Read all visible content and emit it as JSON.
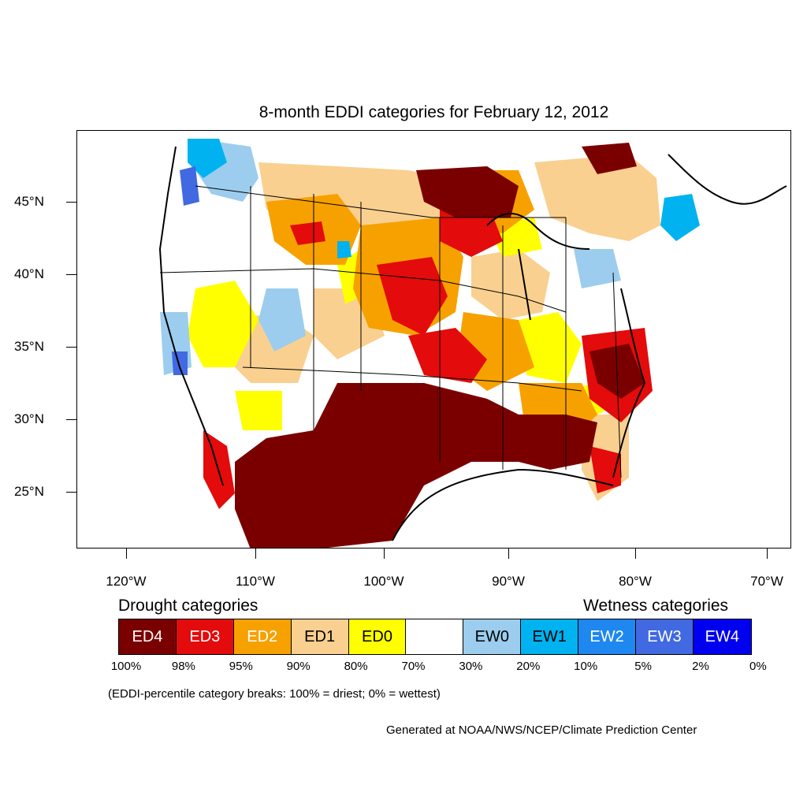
{
  "title": "8-month EDDI categories for February 12, 2012",
  "lat_labels": [
    "45°N",
    "40°N",
    "35°N",
    "30°N",
    "25°N"
  ],
  "lon_labels": [
    "120°W",
    "110°W",
    "100°W",
    "90°W",
    "80°W",
    "70°W"
  ],
  "legend": {
    "drought_heading": "Drought categories",
    "wetness_heading": "Wetness categories",
    "categories": [
      {
        "label": "ED4",
        "color": "#7a0000",
        "text_color": "#ffffff"
      },
      {
        "label": "ED3",
        "color": "#e30b0b",
        "text_color": "#ffffff"
      },
      {
        "label": "ED2",
        "color": "#f7a100",
        "text_color": "#ffffff"
      },
      {
        "label": "ED1",
        "color": "#f9d090",
        "text_color": "#000000"
      },
      {
        "label": "ED0",
        "color": "#ffff00",
        "text_color": "#000000"
      },
      {
        "label": "",
        "color": "#ffffff",
        "text_color": "#000000"
      },
      {
        "label": "EW0",
        "color": "#9ccdee",
        "text_color": "#000000"
      },
      {
        "label": "EW1",
        "color": "#00b2f0",
        "text_color": "#000000"
      },
      {
        "label": "EW2",
        "color": "#1e88f0",
        "text_color": "#ffffff"
      },
      {
        "label": "EW3",
        "color": "#4169e1",
        "text_color": "#ffffff"
      },
      {
        "label": "EW4",
        "color": "#0000f0",
        "text_color": "#ffffff"
      }
    ],
    "breaks": [
      "100%",
      "98%",
      "95%",
      "90%",
      "80%",
      "70%",
      "30%",
      "20%",
      "10%",
      "5%",
      "2%",
      "0%"
    ]
  },
  "note": "(EDDI-percentile category breaks: 100% = driest; 0% = wettest)",
  "credit": "Generated at NOAA/NWS/NCEP/Climate Prediction Center"
}
